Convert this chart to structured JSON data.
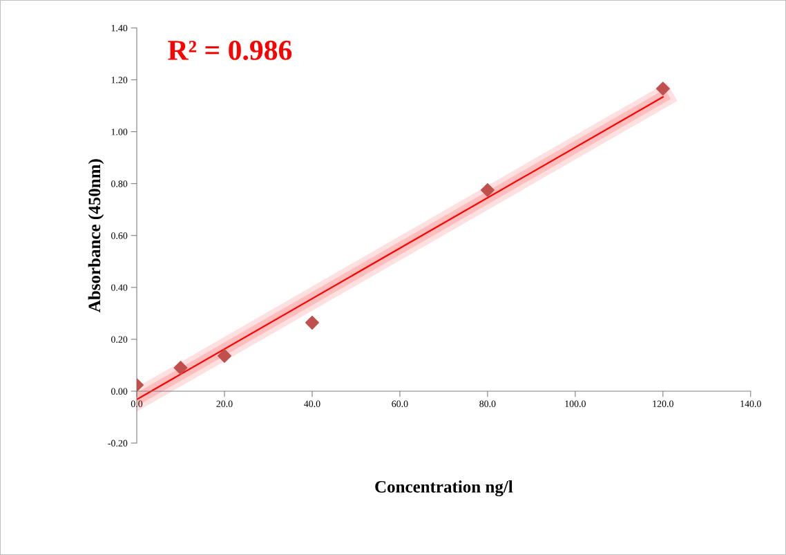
{
  "chart_data": {
    "type": "scatter",
    "xlabel": "Concentration ng/l",
    "ylabel": "Absorbance (450nm)",
    "annotations": [
      "R² = 0.986"
    ],
    "xlim": [
      0,
      140
    ],
    "ylim": [
      -0.2,
      1.4
    ],
    "xticks": [
      {
        "value": 0,
        "label": "0.0"
      },
      {
        "value": 20,
        "label": "20.0"
      },
      {
        "value": 40,
        "label": "40.0"
      },
      {
        "value": 60,
        "label": "60.0"
      },
      {
        "value": 80,
        "label": "80.0"
      },
      {
        "value": 100,
        "label": "100.0"
      },
      {
        "value": 120,
        "label": "120.0"
      },
      {
        "value": 140,
        "label": "140.0"
      }
    ],
    "yticks": [
      {
        "value": -0.2,
        "label": "-0.20"
      },
      {
        "value": 0,
        "label": "0.00"
      },
      {
        "value": 0.2,
        "label": "0.20"
      },
      {
        "value": 0.4,
        "label": "0.40"
      },
      {
        "value": 0.6,
        "label": "0.60"
      },
      {
        "value": 0.8,
        "label": "0.80"
      },
      {
        "value": 1.0,
        "label": "1.00"
      },
      {
        "value": 1.2,
        "label": "1.20"
      },
      {
        "value": 1.4,
        "label": "1.40"
      }
    ],
    "grid": false,
    "legend": false,
    "marker": "diamond",
    "series": [
      {
        "color": "#c0504d",
        "x": [
          0,
          10,
          20,
          40,
          80,
          120
        ],
        "values": [
          0.024,
          0.09,
          0.136,
          0.264,
          0.775,
          1.166
        ]
      },
      {
        "type": "line",
        "marker": "none",
        "color": "#ff0000",
        "x": [
          0,
          120
        ],
        "values": [
          -0.032,
          1.134
        ]
      }
    ]
  }
}
